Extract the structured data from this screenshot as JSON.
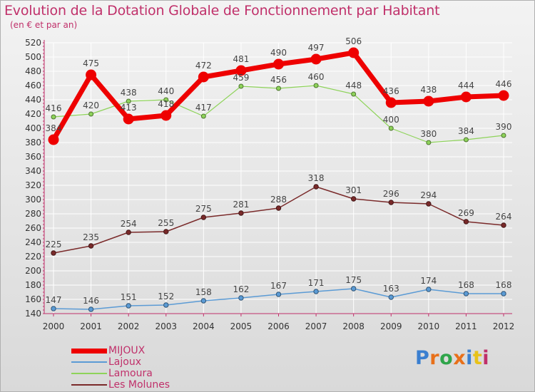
{
  "header": {
    "title": "Evolution de la Dotation Globale de Fonctionnement par Habitant",
    "subtitle": "(en € et par an)"
  },
  "logo": {
    "text": "Proxiti",
    "colors": [
      "#3a7fd0",
      "#e8701a",
      "#2fa54a",
      "#e8701a",
      "#3a7fd0",
      "#e8c21a",
      "#c0306a"
    ]
  },
  "colors": {
    "title": "#c0306a",
    "axis_label": "#c0306a",
    "grid": "#ffffff"
  },
  "chart_data": {
    "type": "line",
    "title": "Evolution de la Dotation Globale de Fonctionnement par Habitant",
    "subtitle": "(en € et par an)",
    "xlabel": "",
    "ylabel": "",
    "x": [
      "2000",
      "2001",
      "2002",
      "2003",
      "2004",
      "2005",
      "2006",
      "2007",
      "2008",
      "2009",
      "2010",
      "2011",
      "2012"
    ],
    "ylim": [
      140,
      520
    ],
    "yticks": [
      140,
      160,
      180,
      200,
      220,
      240,
      260,
      280,
      300,
      320,
      340,
      360,
      380,
      400,
      420,
      440,
      460,
      480,
      500,
      520
    ],
    "grid": true,
    "legend_position": "bottom-left",
    "series": [
      {
        "name": "Lajoux",
        "color": "#5b9bd5",
        "values": [
          147,
          146,
          151,
          152,
          158,
          162,
          167,
          171,
          175,
          163,
          174,
          168,
          168
        ],
        "labels": [
          "147",
          "146",
          "151",
          "152",
          "158",
          "162",
          "167",
          "171",
          "175",
          "163",
          "174",
          "168",
          "168"
        ]
      },
      {
        "name": "Lamoura",
        "color": "#8ed35a",
        "values": [
          416,
          420,
          438,
          440,
          417,
          459,
          456,
          460,
          448,
          400,
          380,
          384,
          390
        ],
        "labels": [
          "416",
          "420",
          "438",
          "440",
          "417",
          "459",
          "456",
          "460",
          "448",
          "400",
          "380",
          "384",
          "390"
        ]
      },
      {
        "name": "Les Molunes",
        "color": "#7a2a2a",
        "values": [
          225,
          235,
          254,
          255,
          275,
          281,
          288,
          318,
          301,
          296,
          294,
          269,
          264
        ],
        "labels": [
          "225",
          "235",
          "254",
          "255",
          "275",
          "281",
          "288",
          "318",
          "301",
          "296",
          "294",
          "269",
          "264"
        ]
      },
      {
        "name": "MIJOUX",
        "color": "#ee0000",
        "values": [
          384,
          475,
          413,
          418,
          472,
          481,
          490,
          497,
          506,
          436,
          438,
          444,
          446
        ],
        "labels": [
          "384",
          "475",
          "413",
          "418",
          "472",
          "481",
          "490",
          "497",
          "506",
          "436",
          "438",
          "444",
          "446"
        ]
      }
    ],
    "legend_order": [
      "MIJOUX",
      "Lajoux",
      "Lamoura",
      "Les Molunes"
    ]
  }
}
